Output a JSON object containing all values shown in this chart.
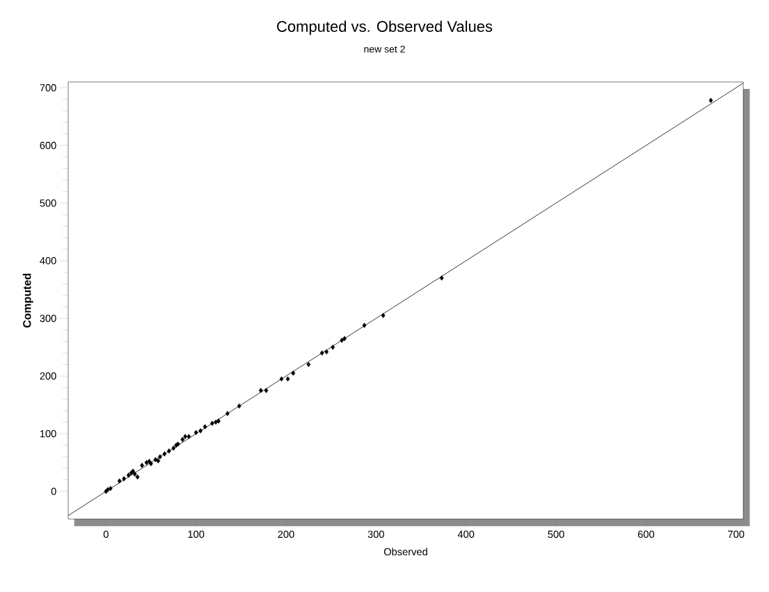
{
  "chart_data": {
    "type": "scatter",
    "title": "Computed vs. Observed Values",
    "subtitle": "new set 2",
    "xlabel": "Observed",
    "ylabel": "Computed",
    "xlim": [
      -42,
      708
    ],
    "ylim": [
      -48,
      710
    ],
    "xticks": [
      0,
      100,
      200,
      300,
      400,
      500,
      600,
      700
    ],
    "yticks": [
      0,
      100,
      200,
      300,
      400,
      500,
      600,
      700
    ],
    "grid": false,
    "legend": false,
    "marker": "diamond",
    "series": [
      {
        "color": "#000000",
        "x": [
          0,
          2,
          5,
          15,
          20,
          25,
          28,
          30,
          32,
          35,
          40,
          45,
          48,
          50,
          55,
          58,
          60,
          65,
          70,
          75,
          78,
          80,
          85,
          88,
          92,
          100,
          105,
          110,
          118,
          122,
          125,
          135,
          148,
          172,
          178,
          195,
          202,
          208,
          225,
          240,
          245,
          252,
          262,
          265,
          287,
          308,
          373,
          672
        ],
        "values": [
          0,
          3,
          5,
          18,
          22,
          28,
          32,
          35,
          30,
          25,
          45,
          50,
          52,
          48,
          55,
          53,
          60,
          65,
          70,
          75,
          80,
          82,
          90,
          95,
          95,
          102,
          105,
          112,
          118,
          120,
          122,
          135,
          148,
          175,
          175,
          195,
          195,
          205,
          220,
          240,
          242,
          250,
          262,
          265,
          288,
          305,
          370,
          678
        ]
      },
      {
        "type": "line",
        "color": "#000000",
        "marker": "none",
        "line_style": "solid",
        "x": [
          -42,
          708
        ],
        "values": [
          -42,
          708
        ]
      }
    ]
  }
}
